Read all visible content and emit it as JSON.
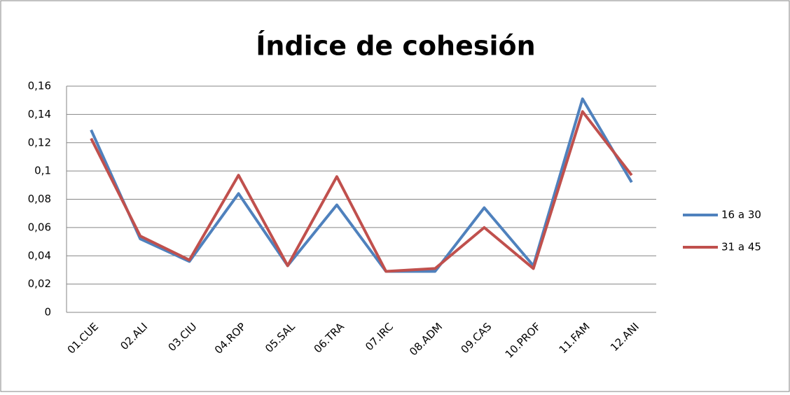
{
  "chart_data": {
    "type": "line",
    "title": "Índice de cohesión",
    "categories": [
      "01.CUE",
      "02.ALI",
      "03.CIU",
      "04.ROP",
      "05.SAL",
      "06.TRA",
      "07.IRC",
      "08.ADM",
      "09.CAS",
      "10.PROF",
      "11.FAM",
      "12.ANI"
    ],
    "series": [
      {
        "name": "16 a 30",
        "color": "#4f81bd",
        "values": [
          0.129,
          0.052,
          0.036,
          0.084,
          0.033,
          0.076,
          0.029,
          0.029,
          0.074,
          0.033,
          0.151,
          0.092
        ]
      },
      {
        "name": "31 a 45",
        "color": "#c0504d",
        "values": [
          0.123,
          0.054,
          0.037,
          0.097,
          0.033,
          0.096,
          0.029,
          0.031,
          0.06,
          0.031,
          0.142,
          0.097
        ]
      }
    ],
    "ylim": [
      0,
      0.16
    ],
    "yticks": [
      0,
      {
        "value": 0.02,
        "label": "0,02"
      },
      {
        "value": 0.04,
        "label": "0,04"
      },
      {
        "value": 0.06,
        "label": "0,06"
      },
      {
        "value": 0.08,
        "label": "0,08"
      },
      {
        "value": 0.1,
        "label": "0,1"
      },
      {
        "value": 0.12,
        "label": "0,12"
      },
      {
        "value": 0.14,
        "label": "0,14"
      },
      {
        "value": 0.16,
        "label": "0,16"
      }
    ],
    "grid": true,
    "legend": "right"
  }
}
